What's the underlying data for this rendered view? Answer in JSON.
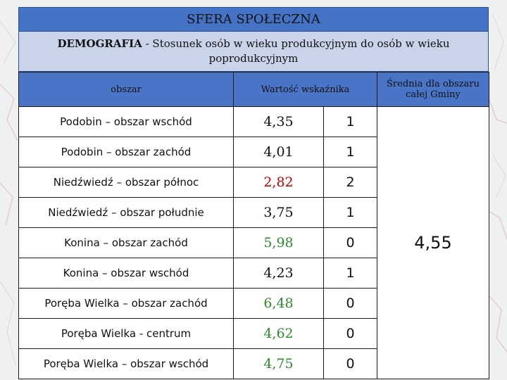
{
  "title": "SFERA SPOŁECZNA",
  "subtitle": {
    "bold": "DEMOGRAFIA",
    "rest": " - Stosunek osób w wieku produkcyjnym do osób w wieku poprodukcyjnym"
  },
  "headers": {
    "area": "obszar",
    "value": "Wartość wskaźnika",
    "average": "Średnia dla obszaru całej Gminy"
  },
  "average_value": "4,55",
  "colors": {
    "red": "#c00000",
    "green": "#2e8b2e"
  },
  "rows": [
    {
      "name": "Podobin – obszar wschód",
      "value": "4,35",
      "score": "1",
      "color": "default"
    },
    {
      "name": "Podobin – obszar zachód",
      "value": "4,01",
      "score": "1",
      "color": "default"
    },
    {
      "name": "Niedźwiedź – obszar północ",
      "value": "2,82",
      "score": "2",
      "color": "red"
    },
    {
      "name": "Niedźwiedź – obszar południe",
      "value": "3,75",
      "score": "1",
      "color": "default"
    },
    {
      "name": "Konina – obszar zachód",
      "value": "5,98",
      "score": "0",
      "color": "green"
    },
    {
      "name": "Konina – obszar wschód",
      "value": "4,23",
      "score": "1",
      "color": "default"
    },
    {
      "name": "Poręba Wielka – obszar zachód",
      "value": "6,48",
      "score": "0",
      "color": "green"
    },
    {
      "name": "Poręba Wielka - centrum",
      "value": "4,62",
      "score": "0",
      "color": "green"
    },
    {
      "name": "Poręba Wielka – obszar wschód",
      "value": "4,75",
      "score": "0",
      "color": "green"
    }
  ]
}
